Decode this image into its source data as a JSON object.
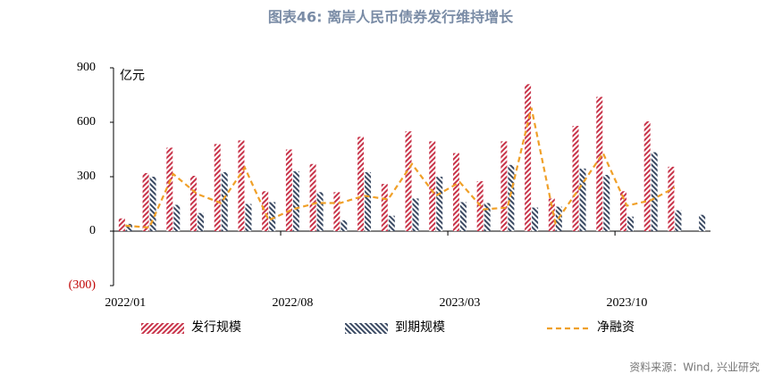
{
  "chart_data": {
    "type": "bar",
    "title": "图表46: 离岸人民币债券发行维持增长",
    "y_unit": "亿元",
    "source": "资料来源：Wind, 兴业研究",
    "categories": [
      "2022/01",
      null,
      null,
      null,
      null,
      null,
      null,
      "2022/08",
      null,
      null,
      null,
      null,
      null,
      null,
      "2023/03",
      null,
      null,
      null,
      null,
      null,
      null,
      "2023/10",
      null,
      null,
      null
    ],
    "series": [
      {
        "name": "发行规模",
        "type": "bar",
        "color": "#c8344a",
        "values": [
          70,
          320,
          460,
          305,
          480,
          500,
          220,
          450,
          370,
          215,
          520,
          260,
          550,
          495,
          430,
          275,
          495,
          810,
          180,
          580,
          740,
          220,
          605,
          355,
          null
        ]
      },
      {
        "name": "到期规模",
        "type": "bar",
        "color": "#3b4a63",
        "values": [
          40,
          300,
          145,
          100,
          325,
          150,
          160,
          330,
          215,
          60,
          325,
          85,
          180,
          300,
          160,
          155,
          365,
          130,
          135,
          345,
          310,
          80,
          435,
          115,
          90
        ]
      },
      {
        "name": "净融资",
        "type": "line",
        "color": "#f0a028",
        "values": [
          30,
          20,
          315,
          205,
          155,
          350,
          60,
          120,
          155,
          155,
          195,
          175,
          370,
          195,
          270,
          120,
          130,
          680,
          45,
          235,
          430,
          140,
          170,
          240,
          null
        ]
      }
    ],
    "ylim": [
      -300,
      900
    ],
    "yticks": [
      {
        "value": -300,
        "label": "(300)"
      },
      0,
      300,
      600,
      900
    ],
    "grid": false
  }
}
